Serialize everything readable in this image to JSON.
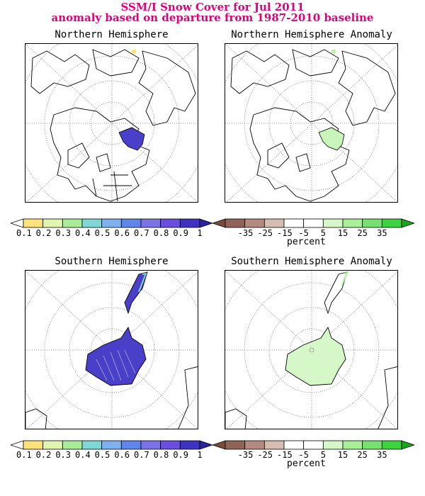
{
  "figure": {
    "title_line1": "SSM/I Snow Cover for Jul 2011",
    "title_line2": "anomaly based on departure from 1987-2010 baseline",
    "title_color": "#e0007a"
  },
  "panels": {
    "nh": "Northern Hemisphere",
    "nh_anom": "Northern Hemisphere Anomaly",
    "sh": "Southern Hemisphere",
    "sh_anom": "Southern Hemisphere Anomaly"
  },
  "colorbars": {
    "cover": {
      "ticks": [
        "0.1",
        "0.2",
        "0.3",
        "0.4",
        "0.5",
        "0.6",
        "0.7",
        "0.8",
        "0.9",
        "1"
      ],
      "colors": [
        "#ffffff",
        "#ffe27a",
        "#dff5b0",
        "#a8ec9a",
        "#7fd7d8",
        "#7fb0ef",
        "#5f86ea",
        "#7a73e6",
        "#6a4ee0",
        "#3d33c0",
        "#2b23a0"
      ]
    },
    "anomaly": {
      "ticks": [
        "-35",
        "-25",
        "-15",
        "-5",
        "5",
        "15",
        "25",
        "35"
      ],
      "colors": [
        "#7a4a3a",
        "#8f6355",
        "#b48a7e",
        "#d7bcb2",
        "#ffffff",
        "#ffffff",
        "#d6f7c8",
        "#a9ef98",
        "#77e070",
        "#3fd23f",
        "#1aa51a"
      ],
      "unit": "percent"
    }
  }
}
